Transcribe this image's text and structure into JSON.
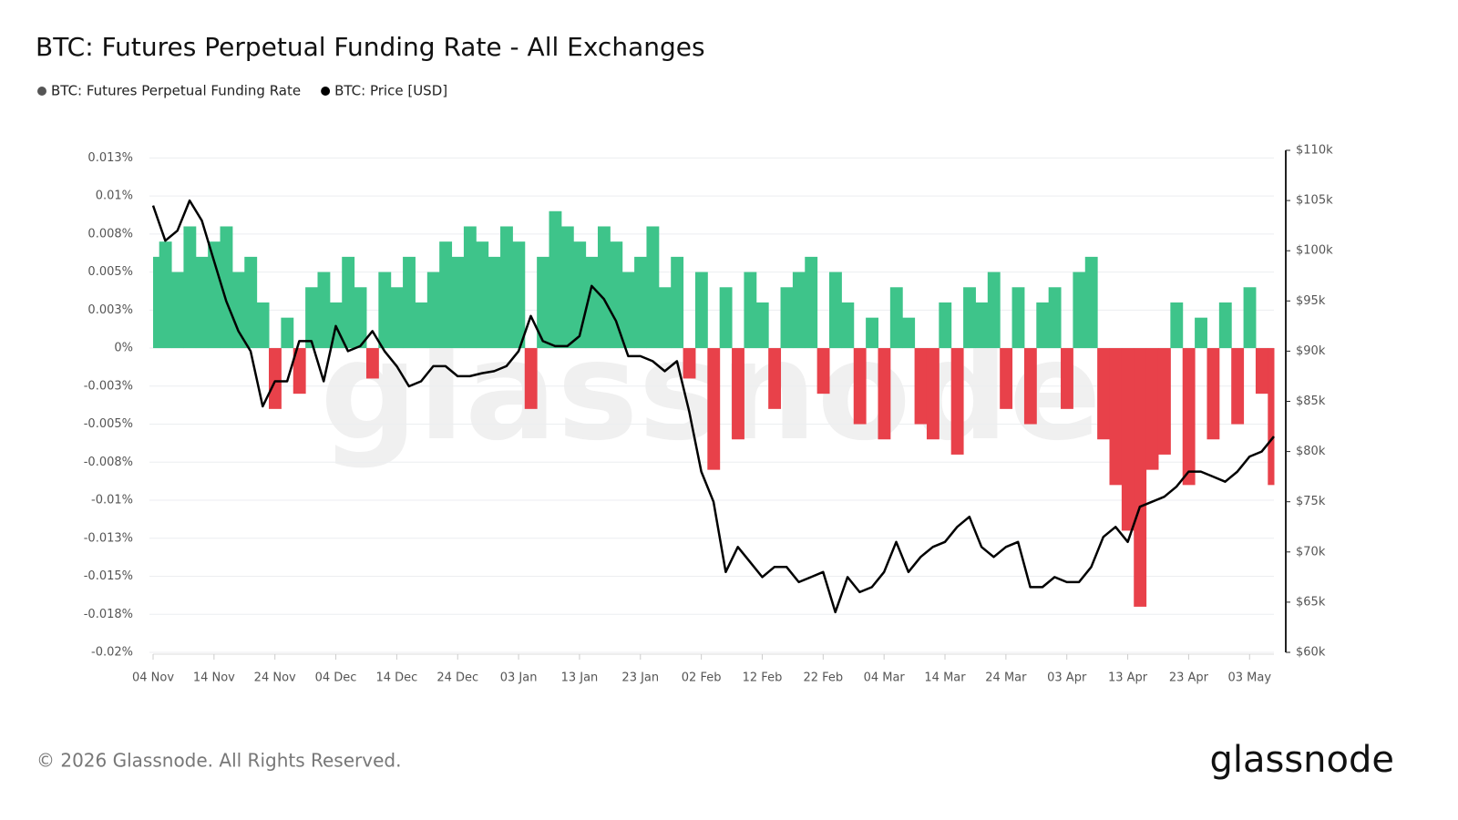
{
  "chart_data": {
    "type": "bar",
    "title": "BTC: Futures Perpetual Funding Rate - All Exchanges",
    "categories": [
      "04 Nov",
      null,
      null,
      null,
      null,
      "14 Nov",
      null,
      null,
      null,
      null,
      "24 Nov",
      null,
      null,
      null,
      null,
      "04 Dec",
      null,
      null,
      null,
      null,
      "14 Dec",
      null,
      null,
      null,
      null,
      "24 Dec",
      null,
      null,
      null,
      null,
      "03 Jan",
      null,
      null,
      null,
      null,
      "13 Jan",
      null,
      null,
      null,
      null,
      "23 Jan",
      null,
      null,
      null,
      null,
      "02 Feb",
      null,
      null,
      null,
      null,
      "12 Feb",
      null,
      null,
      null,
      null,
      "22 Feb",
      null,
      null,
      null,
      null,
      "04 Mar",
      null,
      null,
      null,
      null,
      "14 Mar",
      null,
      null,
      null,
      null,
      "24 Mar",
      null,
      null,
      null,
      null,
      "03 Apr",
      null,
      null,
      null,
      null,
      "13 Apr",
      null,
      null,
      null,
      null,
      "23 Apr",
      null,
      null,
      null,
      null,
      "03 May",
      null,
      null
    ],
    "series": [
      {
        "name": "BTC: Futures Perpetual Funding Rate",
        "type": "bar",
        "axis": "y",
        "color": "#3ec48a",
        "negative_color": "#e8414a",
        "legend_color": "#555555",
        "values": [
          0.006,
          0.007,
          0.005,
          0.008,
          0.006,
          0.007,
          0.008,
          0.005,
          0.006,
          0.003,
          -0.004,
          0.002,
          -0.003,
          0.004,
          0.005,
          0.003,
          0.006,
          0.004,
          -0.002,
          0.005,
          0.004,
          0.006,
          0.003,
          0.005,
          0.007,
          0.006,
          0.008,
          0.007,
          0.006,
          0.008,
          0.007,
          -0.004,
          0.006,
          0.009,
          0.008,
          0.007,
          0.006,
          0.008,
          0.007,
          0.005,
          0.006,
          0.008,
          0.004,
          0.006,
          -0.002,
          0.005,
          -0.008,
          0.004,
          -0.006,
          0.005,
          0.003,
          -0.004,
          0.004,
          0.005,
          0.006,
          -0.003,
          0.005,
          0.003,
          -0.005,
          0.002,
          -0.006,
          0.004,
          0.002,
          -0.005,
          -0.006,
          0.003,
          -0.007,
          0.004,
          0.003,
          0.005,
          -0.004,
          0.004,
          -0.005,
          0.003,
          0.004,
          -0.004,
          0.005,
          0.006,
          -0.006,
          -0.009,
          -0.012,
          -0.017,
          -0.008,
          -0.007,
          0.003,
          -0.009,
          0.002,
          -0.006,
          0.003,
          -0.005,
          0.004,
          -0.003,
          -0.009
        ]
      },
      {
        "name": "BTC: Price [USD]",
        "type": "line",
        "axis": "y2",
        "color": "#000000",
        "values": [
          104500,
          101000,
          102000,
          105000,
          103000,
          99000,
          95000,
          92000,
          90000,
          84500,
          87000,
          87000,
          91000,
          91000,
          87000,
          92500,
          90000,
          90500,
          92000,
          90000,
          88500,
          86500,
          87000,
          88500,
          88500,
          87500,
          87500,
          87800,
          88000,
          88500,
          90000,
          93500,
          91000,
          90500,
          90500,
          91500,
          96500,
          95200,
          93000,
          89500,
          89500,
          89000,
          88000,
          89000,
          84000,
          78000,
          75000,
          68000,
          70500,
          69000,
          67500,
          68500,
          68500,
          67000,
          67500,
          68000,
          64000,
          67500,
          66000,
          66500,
          68000,
          71000,
          68000,
          69500,
          70500,
          71000,
          72500,
          73500,
          70500,
          69500,
          70500,
          71000,
          66500,
          66500,
          67500,
          67000,
          67000,
          68500,
          71500,
          72500,
          71000,
          74500,
          75000,
          75500,
          76500,
          78000,
          78000,
          77500,
          77000,
          78000,
          79500,
          80000,
          81500
        ]
      }
    ],
    "ylim": [
      -0.02,
      0.013
    ],
    "yticks": [
      {
        "value": 0.0125,
        "label": "0.013%"
      },
      {
        "value": 0.01,
        "label": "0.01%"
      },
      {
        "value": 0.0075,
        "label": "0.008%"
      },
      {
        "value": 0.005,
        "label": "0.005%"
      },
      {
        "value": 0.0025,
        "label": "0.003%"
      },
      {
        "value": 0,
        "label": "0%"
      },
      {
        "value": -0.0025,
        "label": "-0.003%"
      },
      {
        "value": -0.005,
        "label": "-0.005%"
      },
      {
        "value": -0.0075,
        "label": "-0.008%"
      },
      {
        "value": -0.01,
        "label": "-0.01%"
      },
      {
        "value": -0.0125,
        "label": "-0.013%"
      },
      {
        "value": -0.015,
        "label": "-0.015%"
      },
      {
        "value": -0.0175,
        "label": "-0.018%"
      },
      {
        "value": -0.02,
        "label": "-0.02%"
      }
    ],
    "y2lim": [
      60000,
      110000
    ],
    "y2ticks": [
      {
        "value": 60000,
        "label": "$60k"
      },
      {
        "value": 65000,
        "label": "$65k"
      },
      {
        "value": 70000,
        "label": "$70k"
      },
      {
        "value": 75000,
        "label": "$75k"
      },
      {
        "value": 80000,
        "label": "$80k"
      },
      {
        "value": 85000,
        "label": "$85k"
      },
      {
        "value": 90000,
        "label": "$90k"
      },
      {
        "value": 95000,
        "label": "$95k"
      },
      {
        "value": 100000,
        "label": "$100k"
      },
      {
        "value": 105000,
        "label": "$105k"
      },
      {
        "value": 110000,
        "label": "$110k"
      }
    ],
    "grid": true
  },
  "footer": "© 2026 Glassnode. All Rights Reserved.",
  "brand": "glassnode"
}
